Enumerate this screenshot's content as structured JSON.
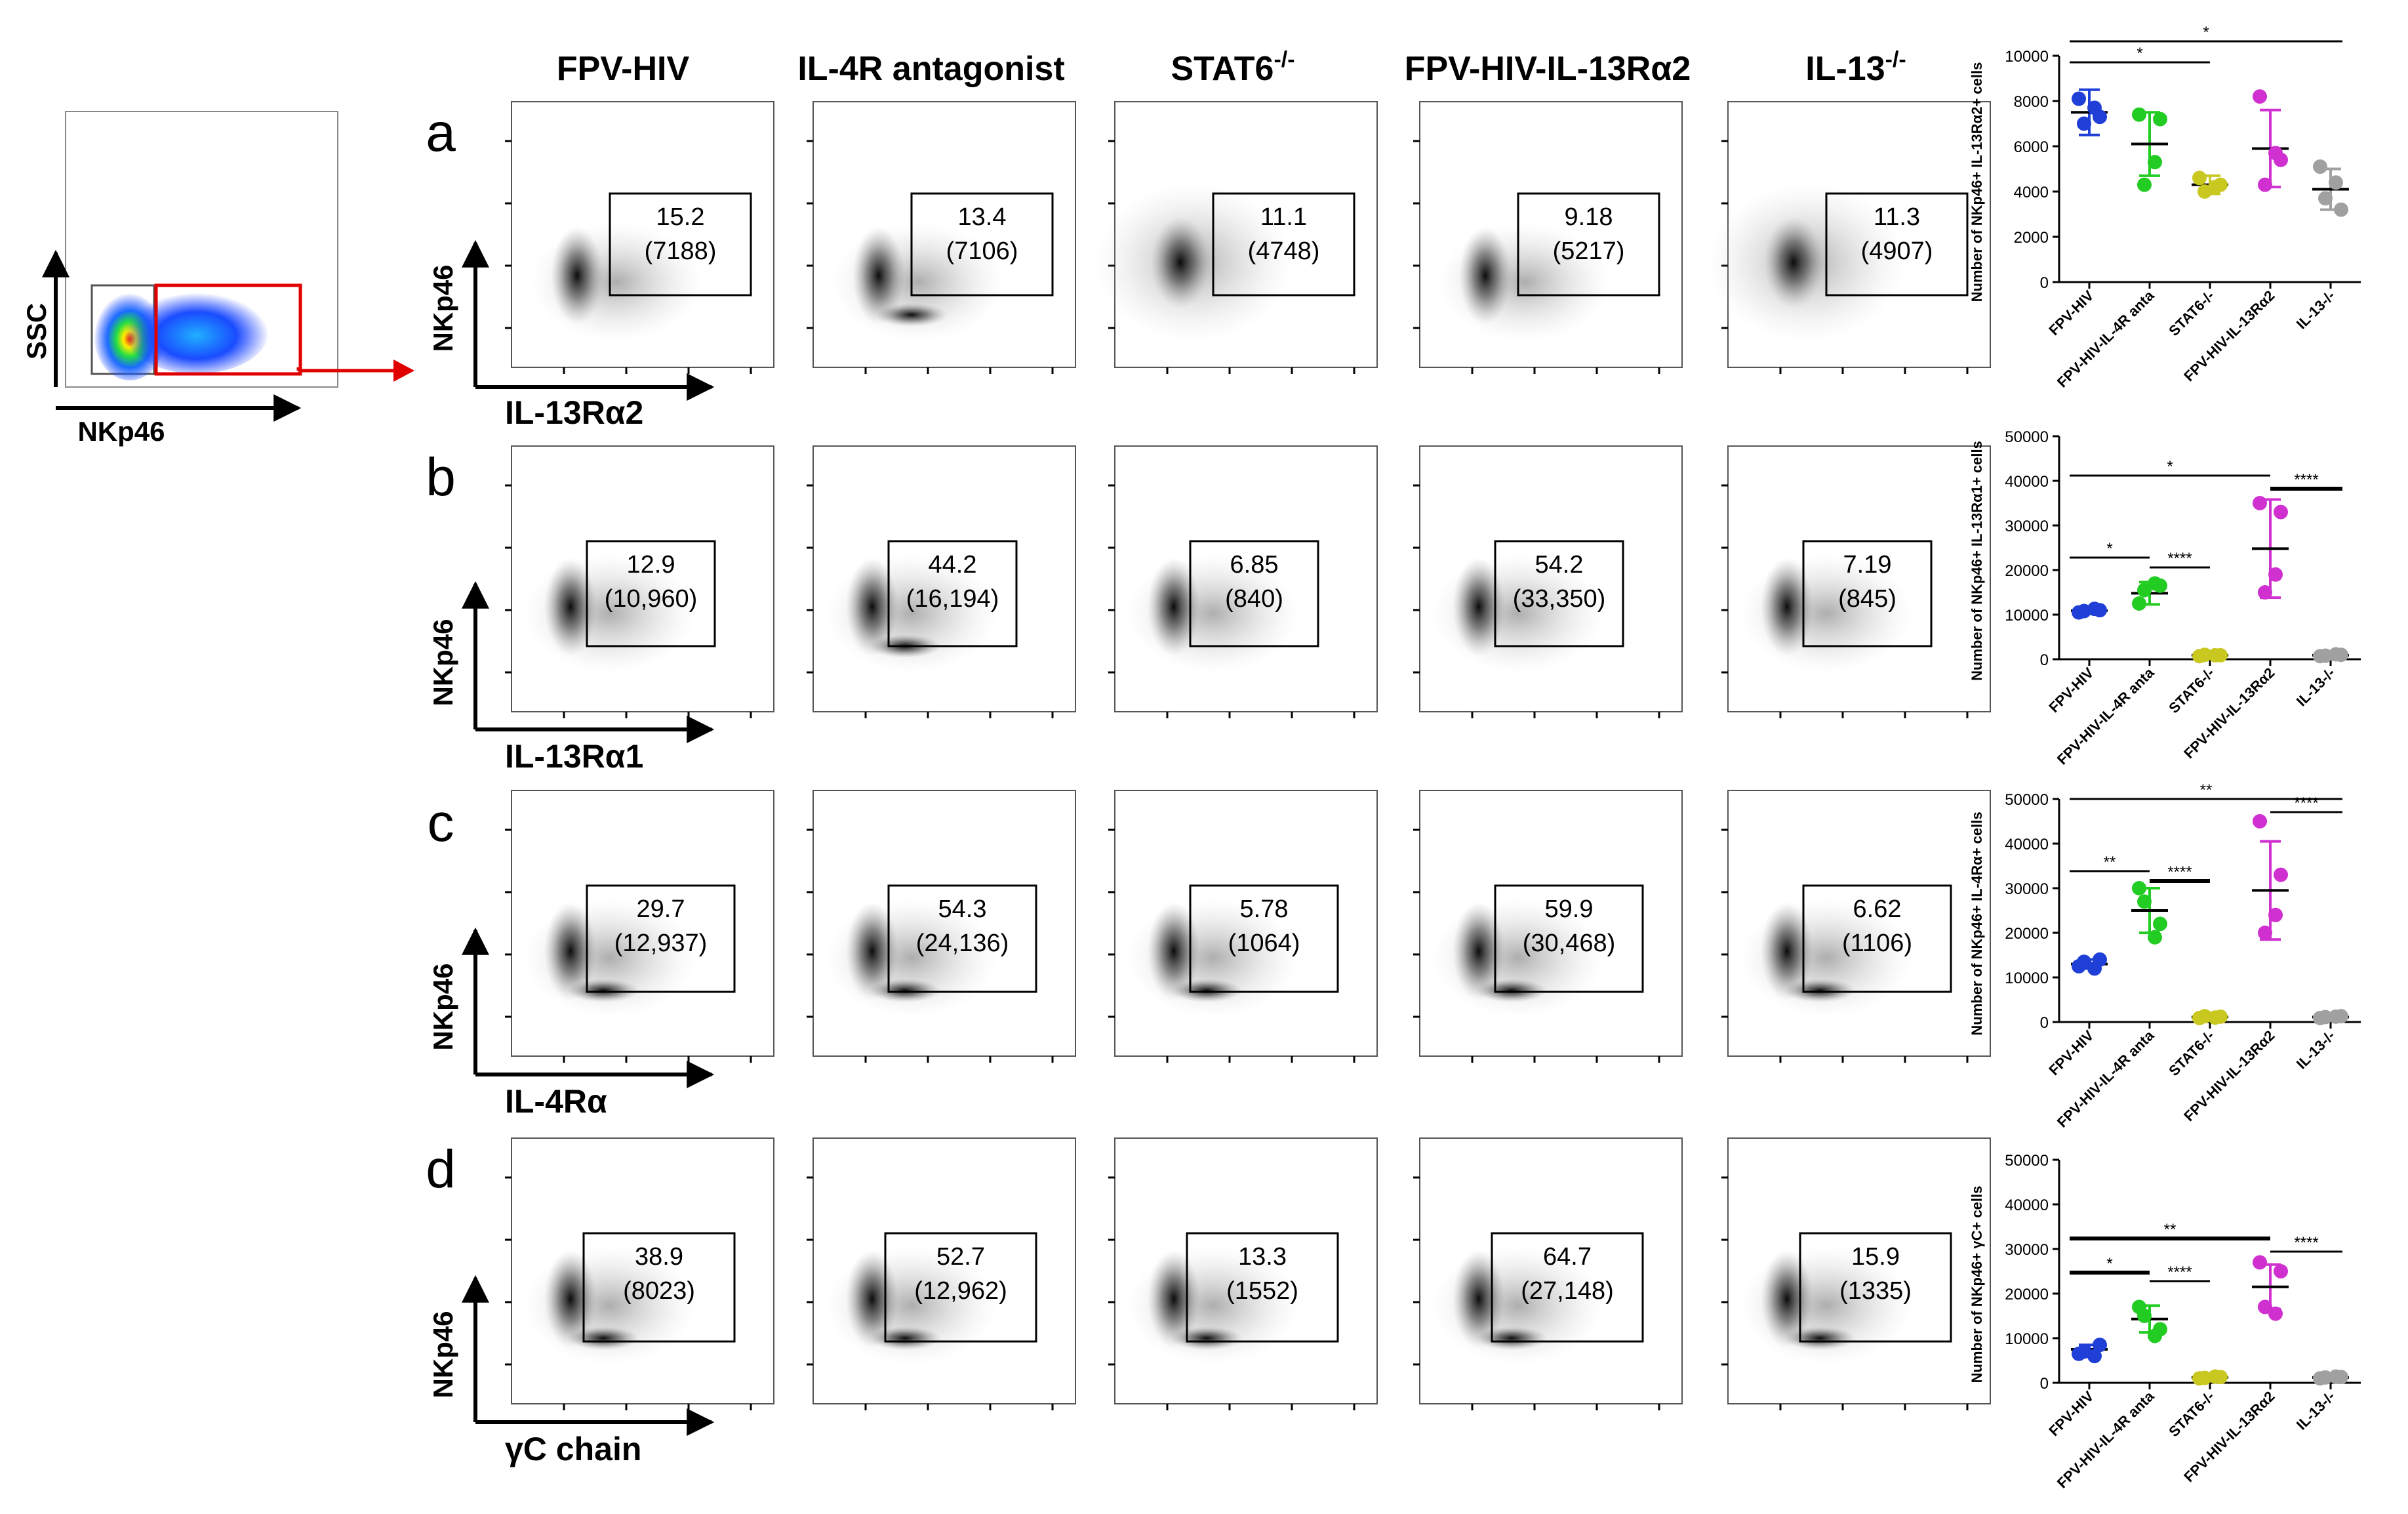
{
  "gating": {
    "y_label": "SSC",
    "x_label": "NKp46"
  },
  "columns": [
    "FPV-HIV",
    "IL-4R antagonist",
    "STAT6",
    "FPV-HIV-IL-13Rα2",
    "IL-13"
  ],
  "column_superscripts": [
    "",
    "",
    "-/-",
    "",
    "-/-"
  ],
  "rows": [
    {
      "letter": "a",
      "y_label": "NKp46",
      "x_label": "IL-13Rα2",
      "gate_values": [
        "15.2",
        "13.4",
        "11.1",
        "9.18",
        "11.3"
      ],
      "gate_counts": [
        "(7188)",
        "(7106)",
        "(4748)",
        "(5217)",
        "(4907)"
      ]
    },
    {
      "letter": "b",
      "y_label": "NKp46",
      "x_label": "IL-13Rα1",
      "gate_values": [
        "12.9",
        "44.2",
        "6.85",
        "54.2",
        "7.19"
      ],
      "gate_counts": [
        "(10,960)",
        "(16,194)",
        "(840)",
        "(33,350)",
        "(845)"
      ]
    },
    {
      "letter": "c",
      "y_label": "NKp46",
      "x_label": "IL-4Rα",
      "gate_values": [
        "29.7",
        "54.3",
        "5.78",
        "59.9",
        "6.62"
      ],
      "gate_counts": [
        "(12,937)",
        "(24,136)",
        "(1064)",
        "(30,468)",
        "(1106)"
      ]
    },
    {
      "letter": "d",
      "y_label": "NKp46",
      "x_label": "γC chain",
      "gate_values": [
        "38.9",
        "52.7",
        "13.3",
        "64.7",
        "15.9"
      ],
      "gate_counts": [
        "(8023)",
        "(12,962)",
        "(1552)",
        "(27,148)",
        "(1335)"
      ]
    }
  ],
  "chart_data": [
    {
      "type": "scatter",
      "ylabel": "Number of NKp46+ IL-13Rα2+ cells",
      "categories": [
        "FPV-HIV",
        "FPV-HIV-IL-4R anta",
        "STAT6-/-",
        "FPV-HIV-IL-13Rα2",
        "IL-13-/-"
      ],
      "ylim": [
        0,
        10000
      ],
      "yticks": [
        "0",
        "2000",
        "4000",
        "6000",
        "8000",
        "10000"
      ],
      "colors": [
        "#1f3fd6",
        "#22cc22",
        "#c8c820",
        "#d030d0",
        "#a0a0a0"
      ],
      "means": [
        7500,
        6100,
        4300,
        5900,
        4100
      ],
      "sds": [
        1000,
        1400,
        400,
        1700,
        900
      ],
      "points": [
        [
          8100,
          7300,
          7000,
          7700
        ],
        [
          7400,
          7200,
          4300,
          5300
        ],
        [
          4600,
          4300,
          4000,
          4200
        ],
        [
          8200,
          5400,
          4300,
          5700
        ],
        [
          5100,
          3200,
          3700,
          4400
        ]
      ],
      "significance": [
        {
          "from": 0,
          "to": 4,
          "label": "*",
          "thick": false
        },
        {
          "from": 0,
          "to": 2,
          "label": "*",
          "thick": false
        }
      ]
    },
    {
      "type": "scatter",
      "ylabel": "Number of NKp46+ IL-13Rα1+ cells",
      "categories": [
        "FPV-HIV",
        "FPV-HIV-IL-4R anta",
        "STAT6-/-",
        "FPV-HIV-IL-13Rα2",
        "IL-13-/-"
      ],
      "ylim": [
        0,
        50000
      ],
      "yticks": [
        "0",
        "10000",
        "20000",
        "30000",
        "40000",
        "50000"
      ],
      "colors": [
        "#1f3fd6",
        "#22cc22",
        "#c8c820",
        "#d030d0",
        "#a0a0a0"
      ],
      "means": [
        10900,
        14800,
        900,
        24800,
        900
      ],
      "sds": [
        700,
        2500,
        300,
        11000,
        300
      ],
      "points": [
        [
          10500,
          11000,
          10800,
          11300
        ],
        [
          12500,
          16500,
          15500,
          17000
        ],
        [
          700,
          900,
          1000,
          900
        ],
        [
          35000,
          33000,
          15000,
          19000
        ],
        [
          700,
          1000,
          800,
          1100
        ]
      ],
      "significance": [
        {
          "from": 0,
          "to": 3,
          "label": "*",
          "thick": false
        },
        {
          "from": 3,
          "to": 4,
          "label": "****",
          "thick": true
        },
        {
          "from": 0,
          "to": 1,
          "label": "*",
          "thick": false
        },
        {
          "from": 1,
          "to": 2,
          "label": "****",
          "thick": false
        }
      ]
    },
    {
      "type": "scatter",
      "ylabel": "Number of NKp46+ IL-4Rα+ cells",
      "categories": [
        "FPV-HIV",
        "FPV-HIV-IL-4R anta",
        "STAT6-/-",
        "FPV-HIV-IL-13Rα2",
        "IL-13-/-"
      ],
      "ylim": [
        0,
        50000
      ],
      "yticks": [
        "0",
        "10000",
        "20000",
        "30000",
        "40000",
        "50000"
      ],
      "colors": [
        "#1f3fd6",
        "#22cc22",
        "#c8c820",
        "#d030d0",
        "#a0a0a0"
      ],
      "means": [
        13000,
        25000,
        1100,
        29500,
        1100
      ],
      "sds": [
        1000,
        5000,
        300,
        11000,
        300
      ],
      "points": [
        [
          12500,
          14000,
          13500,
          12000
        ],
        [
          30000,
          22000,
          27000,
          19000
        ],
        [
          900,
          1200,
          1300,
          1000
        ],
        [
          45000,
          33000,
          20000,
          24000
        ],
        [
          900,
          1300,
          1100,
          1200
        ]
      ],
      "significance": [
        {
          "from": 0,
          "to": 4,
          "label": "**",
          "thick": false
        },
        {
          "from": 3,
          "to": 4,
          "label": "****",
          "thick": false
        },
        {
          "from": 0,
          "to": 1,
          "label": "**",
          "thick": false
        },
        {
          "from": 1,
          "to": 2,
          "label": "****",
          "thick": true
        }
      ]
    },
    {
      "type": "scatter",
      "ylabel": "Number of NKp46+ γC+ cells",
      "categories": [
        "FPV-HIV",
        "FPV-HIV-IL-4R anta",
        "STAT6-/-",
        "FPV-HIV-IL-13Rα2",
        "IL-13-/-"
      ],
      "ylim": [
        0,
        50000
      ],
      "yticks": [
        "0",
        "10000",
        "20000",
        "30000",
        "40000",
        "50000"
      ],
      "colors": [
        "#1f3fd6",
        "#22cc22",
        "#c8c820",
        "#d030d0",
        "#a0a0a0"
      ],
      "means": [
        7500,
        14300,
        1200,
        21500,
        1200
      ],
      "sds": [
        1000,
        3000,
        300,
        5000,
        300
      ],
      "points": [
        [
          6500,
          8500,
          7000,
          6000
        ],
        [
          17000,
          12000,
          15000,
          10500
        ],
        [
          1000,
          1300,
          1100,
          1400
        ],
        [
          27000,
          25000,
          17000,
          15500
        ],
        [
          1000,
          1300,
          1200,
          1400
        ]
      ],
      "significance": [
        {
          "from": 0,
          "to": 3,
          "label": "**",
          "thick": true
        },
        {
          "from": 3,
          "to": 4,
          "label": "****",
          "thick": false
        },
        {
          "from": 0,
          "to": 1,
          "label": "*",
          "thick": true
        },
        {
          "from": 1,
          "to": 2,
          "label": "****",
          "thick": false
        }
      ]
    }
  ]
}
